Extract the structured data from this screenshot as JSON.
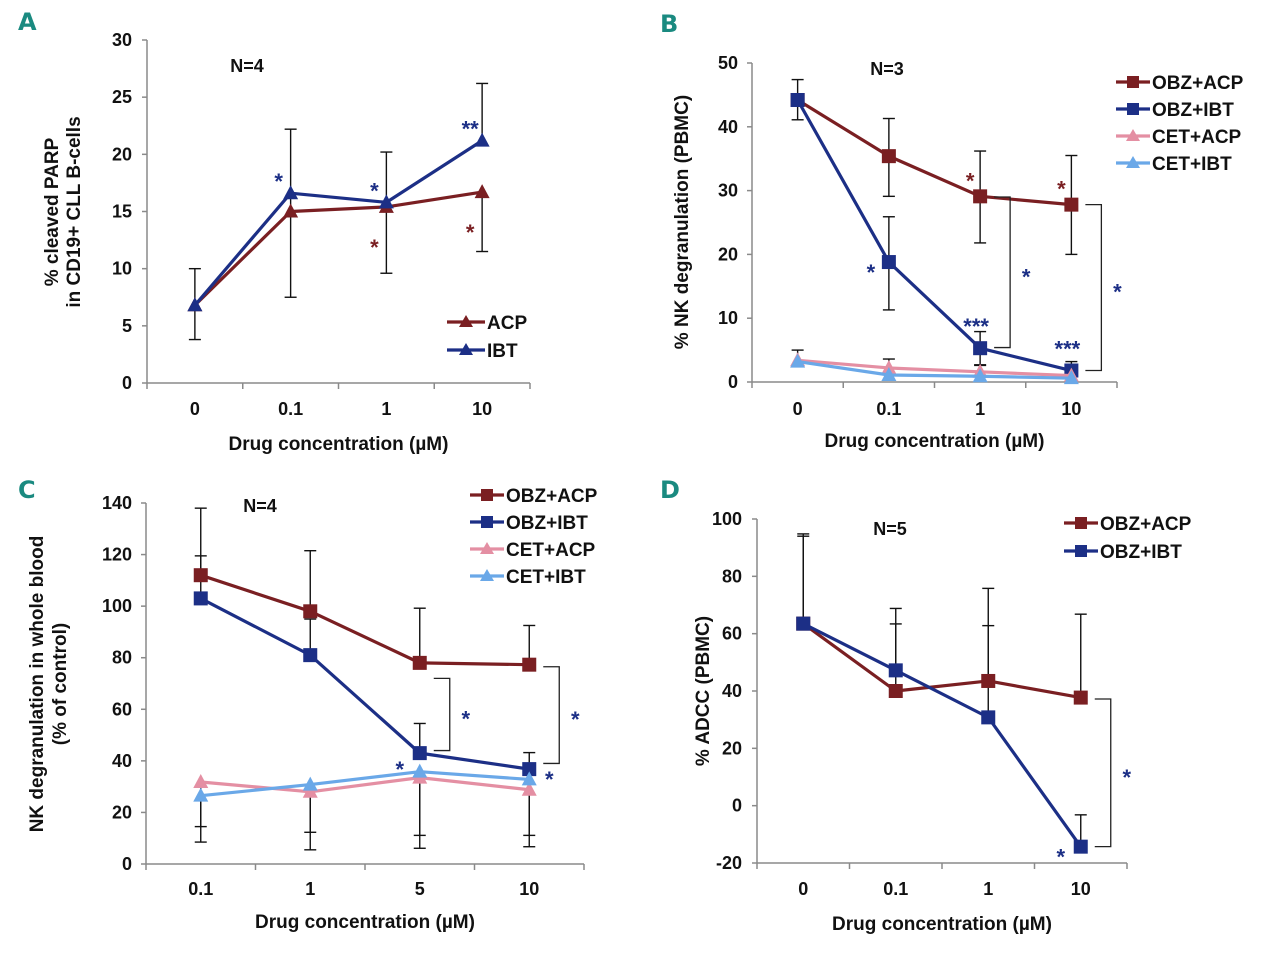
{
  "colors": {
    "ACP": "#7a1f22",
    "IBT": "#1c2f86",
    "CET_ACP": "#e48fa3",
    "CET_IBT": "#6aa8e8",
    "axis": "#8a8a8a",
    "error": "#111111",
    "panel_letter": "#1a8a80"
  },
  "chart_data": [
    {
      "panel": "A",
      "type": "line",
      "annotation": "N=4",
      "xlabel": "Drug concentration (µM)",
      "ylabel": [
        "% cleaved PARP",
        "in CD19+ CLL B-cells"
      ],
      "categories": [
        "0",
        "0.1",
        "1",
        "10"
      ],
      "ylim": [
        0,
        30
      ],
      "yticks": [
        0,
        5,
        10,
        15,
        20,
        25,
        30
      ],
      "legend_position": "bottom-right",
      "series": [
        {
          "name": "ACP",
          "color_key": "ACP",
          "marker": "triangle",
          "values": [
            6.8,
            15.0,
            15.4,
            16.7
          ],
          "err_up": [
            null,
            22.2,
            20.2,
            null
          ],
          "err_down": [
            3.8,
            7.5,
            9.6,
            11.5
          ],
          "sig": [
            null,
            null,
            "*",
            "*"
          ],
          "sig_side": "below"
        },
        {
          "name": "IBT",
          "color_key": "IBT",
          "marker": "triangle",
          "values": [
            6.8,
            16.6,
            15.8,
            21.2
          ],
          "err_up": [
            10.0,
            null,
            null,
            26.2
          ],
          "err_down": [
            null,
            null,
            null,
            null
          ],
          "sig": [
            null,
            "*",
            "*",
            "**"
          ],
          "sig_side": "above"
        }
      ],
      "brackets": []
    },
    {
      "panel": "B",
      "type": "line",
      "annotation": "N=3",
      "xlabel": "Drug concentration (µM)",
      "ylabel": [
        "% NK degranulation (PBMC)"
      ],
      "categories": [
        "0",
        "0.1",
        "1",
        "10"
      ],
      "ylim": [
        0,
        50
      ],
      "yticks": [
        0,
        10,
        20,
        30,
        40,
        50
      ],
      "legend_position": "top-right-outside",
      "series": [
        {
          "name": "OBZ+ACP",
          "color_key": "ACP",
          "marker": "square",
          "values": [
            44.2,
            35.4,
            29.1,
            27.8
          ],
          "err_up": [
            47.4,
            41.3,
            36.2,
            35.5
          ],
          "err_down": [
            41.1,
            29.1,
            21.8,
            20.0
          ],
          "sig": [
            null,
            null,
            "*",
            "*"
          ],
          "sig_side": "above-left"
        },
        {
          "name": "OBZ+IBT",
          "color_key": "IBT",
          "marker": "square",
          "values": [
            44.2,
            18.8,
            5.3,
            1.8
          ],
          "err_up": [
            null,
            25.9,
            7.9,
            3.2
          ],
          "err_down": [
            null,
            11.3,
            2.7,
            null
          ],
          "sig": [
            null,
            "*",
            "***",
            "***"
          ],
          "sig_side": "mixed"
        },
        {
          "name": "CET+ACP",
          "color_key": "CET_ACP",
          "marker": "triangle",
          "values": [
            3.4,
            2.2,
            1.6,
            1.0
          ],
          "err_up": [
            5.0,
            3.6,
            2.6,
            null
          ],
          "err_down": [
            null,
            null,
            null,
            null
          ],
          "sig": [
            null,
            null,
            null,
            null
          ]
        },
        {
          "name": "CET+IBT",
          "color_key": "CET_IBT",
          "marker": "triangle",
          "values": [
            3.2,
            1.1,
            0.9,
            0.6
          ],
          "err_up": [
            null,
            null,
            null,
            null
          ],
          "err_down": [
            null,
            null,
            null,
            null
          ],
          "sig": [
            null,
            null,
            null,
            null
          ]
        }
      ],
      "brackets": [
        {
          "x_index": 2,
          "from": 29.0,
          "to": 5.4,
          "label": "*"
        },
        {
          "x_index": 3,
          "from": 27.8,
          "to": 1.8,
          "label": "*"
        }
      ]
    },
    {
      "panel": "C",
      "type": "line",
      "annotation": "N=4",
      "xlabel": "Drug concentration (µM)",
      "ylabel": [
        "NK degranulation in whole blood",
        "(% of control)"
      ],
      "categories": [
        "0.1",
        "1",
        "5",
        "10"
      ],
      "ylim": [
        0,
        140
      ],
      "yticks": [
        0,
        20,
        40,
        60,
        80,
        100,
        120,
        140
      ],
      "legend_position": "top-right",
      "series": [
        {
          "name": "OBZ+ACP",
          "color_key": "ACP",
          "marker": "square",
          "values": [
            112.0,
            98.0,
            78.0,
            77.3
          ],
          "err_up": [
            138.0,
            121.5,
            99.2,
            92.5
          ],
          "err_down": [
            null,
            null,
            null,
            null
          ],
          "sig": [
            null,
            null,
            null,
            null
          ]
        },
        {
          "name": "OBZ+IBT",
          "color_key": "IBT",
          "marker": "square",
          "values": [
            103.0,
            81.0,
            43.0,
            36.8
          ],
          "err_up": [
            119.5,
            95.0,
            54.5,
            43.2
          ],
          "err_down": [
            null,
            null,
            null,
            null
          ],
          "sig": [
            null,
            null,
            "*",
            "*"
          ],
          "sig_side": "mixed"
        },
        {
          "name": "CET+ACP",
          "color_key": "CET_ACP",
          "marker": "triangle",
          "values": [
            31.8,
            28.0,
            33.5,
            28.8
          ],
          "err_up": [
            null,
            null,
            null,
            null
          ],
          "err_down": [
            14.5,
            12.3,
            11.1,
            11.1
          ],
          "sig": [
            null,
            null,
            null,
            null
          ]
        },
        {
          "name": "CET+IBT",
          "color_key": "CET_IBT",
          "marker": "triangle",
          "values": [
            26.5,
            30.8,
            35.8,
            32.8
          ],
          "err_up": [
            null,
            null,
            null,
            null
          ],
          "err_down": [
            8.5,
            5.5,
            6.1,
            6.7
          ],
          "sig": [
            null,
            null,
            null,
            null
          ]
        }
      ],
      "brackets": [
        {
          "x_index": 2,
          "from": 72.0,
          "to": 44.0,
          "label": "*"
        },
        {
          "x_index": 3,
          "from": 76.5,
          "to": 39.0,
          "label": "*"
        }
      ]
    },
    {
      "panel": "D",
      "type": "line",
      "annotation": "N=5",
      "xlabel": "Drug concentration (µM)",
      "ylabel": [
        "% ADCC (PBMC)"
      ],
      "categories": [
        "0",
        "0.1",
        "1",
        "10"
      ],
      "ylim": [
        -20,
        100
      ],
      "yticks": [
        -20,
        0,
        20,
        40,
        60,
        80,
        100
      ],
      "legend_position": "top-right",
      "series": [
        {
          "name": "OBZ+ACP",
          "color_key": "ACP",
          "marker": "square",
          "values": [
            63.5,
            40.0,
            43.5,
            37.7
          ],
          "err_up": [
            94.8,
            68.8,
            75.8,
            66.8
          ],
          "err_down": [
            null,
            null,
            null,
            null
          ],
          "sig": [
            null,
            null,
            null,
            null
          ]
        },
        {
          "name": "OBZ+IBT",
          "color_key": "IBT",
          "marker": "square",
          "values": [
            63.5,
            47.2,
            30.8,
            -14.3
          ],
          "err_up": [
            94.0,
            63.4,
            62.8,
            -3.2
          ],
          "err_down": [
            null,
            null,
            null,
            null
          ],
          "sig": [
            null,
            null,
            null,
            "*"
          ],
          "sig_side": "left"
        }
      ],
      "brackets": [
        {
          "x_index": 3,
          "from": 37.2,
          "to": -14.3,
          "label": "*"
        }
      ]
    }
  ]
}
